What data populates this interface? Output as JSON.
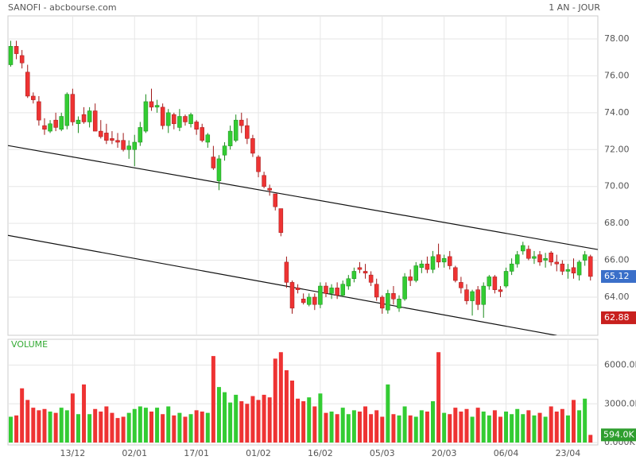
{
  "chart_data": {
    "type": "candlestick",
    "title": "SANOFI - abcbourse.com",
    "subtitle": "1 AN - JOUR",
    "volume_title": "VOLUME",
    "up_color": "#33cc33",
    "down_color": "#ee3333",
    "grid": true,
    "categories": [
      null,
      null,
      null,
      null,
      null,
      null,
      null,
      null,
      null,
      null,
      null,
      "13/12",
      null,
      null,
      null,
      null,
      null,
      null,
      null,
      null,
      null,
      null,
      "02/01",
      null,
      null,
      null,
      null,
      null,
      null,
      null,
      null,
      null,
      null,
      "17/01",
      null,
      null,
      null,
      null,
      null,
      null,
      null,
      null,
      null,
      null,
      "01/02",
      null,
      null,
      null,
      null,
      null,
      null,
      null,
      null,
      null,
      null,
      "16/02",
      null,
      null,
      null,
      null,
      null,
      null,
      null,
      null,
      null,
      null,
      "05/03",
      null,
      null,
      null,
      null,
      null,
      null,
      null,
      null,
      null,
      null,
      "20/03",
      null,
      null,
      null,
      null,
      null,
      null,
      null,
      null,
      null,
      null,
      "06/04",
      null,
      null,
      null,
      null,
      null,
      null,
      null,
      null,
      null,
      null,
      "23/04",
      null,
      null,
      null,
      null
    ],
    "ohlc": [
      [
        76.6,
        77.9,
        76.5,
        77.6
      ],
      [
        77.6,
        77.9,
        76.9,
        77.2
      ],
      [
        77.1,
        77.4,
        76.4,
        76.7
      ],
      [
        76.2,
        76.6,
        74.8,
        74.9
      ],
      [
        74.9,
        75.1,
        74.5,
        74.7
      ],
      [
        74.6,
        74.9,
        73.3,
        73.6
      ],
      [
        73.3,
        73.7,
        72.8,
        73.1
      ],
      [
        73.0,
        73.6,
        72.9,
        73.4
      ],
      [
        73.6,
        74.0,
        73.0,
        73.2
      ],
      [
        73.1,
        74.0,
        73.0,
        73.8
      ],
      [
        73.3,
        75.1,
        73.1,
        75.0
      ],
      [
        75.0,
        75.3,
        73.3,
        73.5
      ],
      [
        73.4,
        73.8,
        72.9,
        73.6
      ],
      [
        73.9,
        74.3,
        73.4,
        73.5
      ],
      [
        73.5,
        74.3,
        73.2,
        74.1
      ],
      [
        74.1,
        74.5,
        73.0,
        73.0
      ],
      [
        73.0,
        73.6,
        72.6,
        72.7
      ],
      [
        72.9,
        73.4,
        72.3,
        72.5
      ],
      [
        72.6,
        73.0,
        72.3,
        72.5
      ],
      [
        72.5,
        72.9,
        72.1,
        72.4
      ],
      [
        72.5,
        72.9,
        71.9,
        72.0
      ],
      [
        72.0,
        72.5,
        71.5,
        72.2
      ],
      [
        72.0,
        72.8,
        71.1,
        72.4
      ],
      [
        72.4,
        73.5,
        72.2,
        73.2
      ],
      [
        73.0,
        75.0,
        72.9,
        74.6
      ],
      [
        74.6,
        75.3,
        74.1,
        74.3
      ],
      [
        74.3,
        74.7,
        74.0,
        74.4
      ],
      [
        74.3,
        74.5,
        73.1,
        73.3
      ],
      [
        73.3,
        74.2,
        72.9,
        74.0
      ],
      [
        73.9,
        74.0,
        73.1,
        73.4
      ],
      [
        73.2,
        74.2,
        73.0,
        73.8
      ],
      [
        73.8,
        73.9,
        73.3,
        73.5
      ],
      [
        73.4,
        74.0,
        73.2,
        73.9
      ],
      [
        73.5,
        73.6,
        72.8,
        73.1
      ],
      [
        73.2,
        73.4,
        72.4,
        72.5
      ],
      [
        72.4,
        72.9,
        72.1,
        72.8
      ],
      [
        71.6,
        72.2,
        70.9,
        71.0
      ],
      [
        70.3,
        71.7,
        69.8,
        71.5
      ],
      [
        71.7,
        72.4,
        71.4,
        72.2
      ],
      [
        72.2,
        73.3,
        72.0,
        73.0
      ],
      [
        72.5,
        73.9,
        72.4,
        73.6
      ],
      [
        73.6,
        74.0,
        72.9,
        73.3
      ],
      [
        73.3,
        73.7,
        72.3,
        72.6
      ],
      [
        72.6,
        72.8,
        71.6,
        71.8
      ],
      [
        71.6,
        71.7,
        70.5,
        70.8
      ],
      [
        70.6,
        70.8,
        69.9,
        70.0
      ],
      [
        69.9,
        70.1,
        69.5,
        69.8
      ],
      [
        69.6,
        69.6,
        68.7,
        68.9
      ],
      [
        68.8,
        68.8,
        67.3,
        67.5
      ],
      [
        65.9,
        66.2,
        64.5,
        64.8
      ],
      [
        64.8,
        64.9,
        63.1,
        63.4
      ],
      [
        64.5,
        64.7,
        64.2,
        64.4
      ],
      [
        63.9,
        64.2,
        63.6,
        63.7
      ],
      [
        63.6,
        64.2,
        63.5,
        64.0
      ],
      [
        64.0,
        64.2,
        63.3,
        63.6
      ],
      [
        63.6,
        64.8,
        63.4,
        64.6
      ],
      [
        64.6,
        64.8,
        64.0,
        64.2
      ],
      [
        64.2,
        64.7,
        63.9,
        64.5
      ],
      [
        64.5,
        64.8,
        63.9,
        64.1
      ],
      [
        64.1,
        64.9,
        64.0,
        64.7
      ],
      [
        64.6,
        65.2,
        64.4,
        65.0
      ],
      [
        65.0,
        65.6,
        64.8,
        65.4
      ],
      [
        65.6,
        65.9,
        65.3,
        65.5
      ],
      [
        65.4,
        65.8,
        65.0,
        65.3
      ],
      [
        65.2,
        65.4,
        64.6,
        64.8
      ],
      [
        64.7,
        65.0,
        63.8,
        64.0
      ],
      [
        64.0,
        64.1,
        63.1,
        63.4
      ],
      [
        63.3,
        64.4,
        63.1,
        64.2
      ],
      [
        64.2,
        64.6,
        63.6,
        63.9
      ],
      [
        63.4,
        64.1,
        63.2,
        63.9
      ],
      [
        63.9,
        65.3,
        63.8,
        65.1
      ],
      [
        65.1,
        65.5,
        64.6,
        64.9
      ],
      [
        64.9,
        65.9,
        64.8,
        65.7
      ],
      [
        65.6,
        66.0,
        65.3,
        65.8
      ],
      [
        65.8,
        66.2,
        65.3,
        65.5
      ],
      [
        65.5,
        66.5,
        65.3,
        66.2
      ],
      [
        66.3,
        66.9,
        65.6,
        65.9
      ],
      [
        65.9,
        66.3,
        65.6,
        66.1
      ],
      [
        66.2,
        66.5,
        65.5,
        65.7
      ],
      [
        65.6,
        65.7,
        64.8,
        64.9
      ],
      [
        64.8,
        65.1,
        64.2,
        64.5
      ],
      [
        64.4,
        64.7,
        63.6,
        63.8
      ],
      [
        63.8,
        64.4,
        63.0,
        64.3
      ],
      [
        64.4,
        64.6,
        63.3,
        63.6
      ],
      [
        63.6,
        64.8,
        62.88,
        64.6
      ],
      [
        64.6,
        65.2,
        64.4,
        65.1
      ],
      [
        65.1,
        65.2,
        64.2,
        64.4
      ],
      [
        64.4,
        64.6,
        64.0,
        64.3
      ],
      [
        64.6,
        65.6,
        64.5,
        65.4
      ],
      [
        65.4,
        66.1,
        65.2,
        65.8
      ],
      [
        65.8,
        66.5,
        65.6,
        66.3
      ],
      [
        66.5,
        67.0,
        66.3,
        66.8
      ],
      [
        66.6,
        66.8,
        66.0,
        66.1
      ],
      [
        66.1,
        66.5,
        65.8,
        66.2
      ],
      [
        66.3,
        66.5,
        65.7,
        65.9
      ],
      [
        66.0,
        66.4,
        65.6,
        66.1
      ],
      [
        66.4,
        66.5,
        65.7,
        65.9
      ],
      [
        65.9,
        66.3,
        65.4,
        65.8
      ],
      [
        65.8,
        66.0,
        65.2,
        65.4
      ],
      [
        65.4,
        65.8,
        65.0,
        65.5
      ],
      [
        65.6,
        66.1,
        65.0,
        65.3
      ],
      [
        65.2,
        66.0,
        64.9,
        65.9
      ],
      [
        66.0,
        66.5,
        65.7,
        66.3
      ],
      [
        66.2,
        66.3,
        64.9,
        65.12
      ]
    ],
    "volume": [
      2000,
      2100,
      4200,
      3300,
      2700,
      2500,
      2600,
      2400,
      2300,
      2700,
      2500,
      3800,
      2200,
      4500,
      2200,
      2600,
      2400,
      2800,
      2300,
      1900,
      2000,
      2300,
      2600,
      2800,
      2700,
      2400,
      2700,
      2200,
      2800,
      2100,
      2300,
      2000,
      2200,
      2500,
      2400,
      2300,
      6700,
      4300,
      3900,
      3100,
      3700,
      3200,
      3000,
      3600,
      3300,
      3700,
      3500,
      6500,
      7000,
      5600,
      4800,
      3400,
      3200,
      3500,
      2800,
      3800,
      2300,
      2400,
      2200,
      2700,
      2200,
      2500,
      2400,
      2800,
      2200,
      2500,
      2000,
      4500,
      2200,
      2100,
      2800,
      2100,
      2000,
      2500,
      2400,
      3200,
      7000,
      2300,
      2200,
      2700,
      2400,
      2600,
      2000,
      2700,
      2400,
      2100,
      2500,
      2000,
      2400,
      2200,
      2600,
      2200,
      2500,
      2100,
      2300,
      2000,
      2800,
      2400,
      2600,
      2100,
      3300,
      2500,
      3400,
      594
    ],
    "ylim": [
      61.93,
      79.25
    ],
    "yticks": [
      {
        "value": 64,
        "label": "64.00"
      },
      {
        "value": 66,
        "label": "66.00"
      },
      {
        "value": 68,
        "label": "68.00"
      },
      {
        "value": 70,
        "label": "70.00"
      },
      {
        "value": 72,
        "label": "72.00"
      },
      {
        "value": 74,
        "label": "74.00"
      },
      {
        "value": 76,
        "label": "76.00"
      },
      {
        "value": 78,
        "label": "78.00"
      }
    ],
    "volume_ylim": [
      0,
      8000
    ],
    "volume_yticks": [
      {
        "value": 0,
        "label": "0.000K"
      },
      {
        "value": 3000,
        "label": "3000.0K"
      },
      {
        "value": 6000,
        "label": "6000.0K"
      }
    ],
    "volume_tag": {
      "value": 594,
      "label": "594.0K"
    },
    "trendlines": [
      {
        "x": [
          -0.5,
          104.3
        ],
        "y": [
          72.22,
          66.58
        ]
      },
      {
        "x": [
          -0.5,
          97
        ],
        "y": [
          67.35,
          61.92
        ]
      }
    ]
  }
}
